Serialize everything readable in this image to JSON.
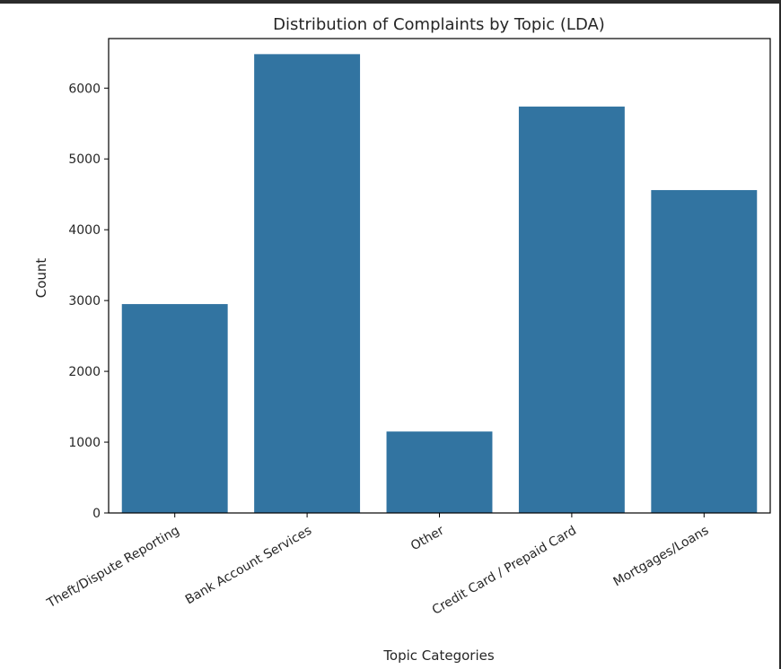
{
  "chart_data": {
    "type": "bar",
    "title": "Distribution of Complaints by Topic (LDA)",
    "xlabel": "Topic Categories",
    "ylabel": "Count",
    "categories": [
      "Theft/Dispute Reporting",
      "Bank Account Services",
      "Other",
      "Credit Card / Prepaid Card",
      "Mortgages/Loans"
    ],
    "values": [
      2950,
      6480,
      1150,
      5740,
      4560
    ],
    "ylim": [
      0,
      6700
    ],
    "yticks": [
      0,
      1000,
      2000,
      3000,
      4000,
      5000,
      6000
    ],
    "bar_color": "#3274a1",
    "grid": false,
    "legend": "none"
  }
}
